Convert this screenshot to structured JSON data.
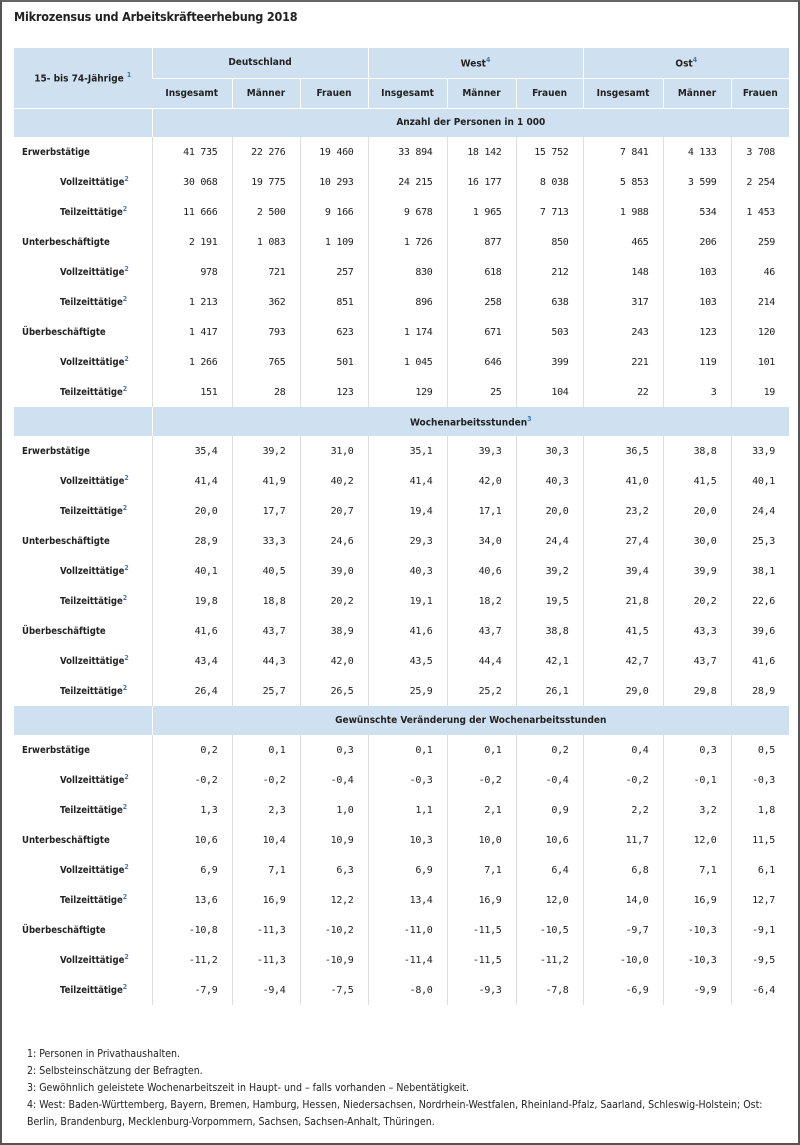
{
  "title": "Mikrozensus und Arbeitskräfteerhebung 2018",
  "header": {
    "row_label": "15- bis 74-Jährige",
    "row_label_note": "1",
    "groups": [
      {
        "label": "Deutschland",
        "note": ""
      },
      {
        "label": "West",
        "note": "4"
      },
      {
        "label": "Ost",
        "note": "4"
      }
    ],
    "columns": [
      "Insgesamt",
      "Männer",
      "Frauen",
      "Insgesamt",
      "Männer",
      "Frauen",
      "Insgesamt",
      "Männer",
      "Frauen"
    ]
  },
  "sections": [
    {
      "title": "Anzahl der Personen in 1 000",
      "note": "",
      "rows": [
        {
          "label": "Erwerbstätige",
          "sub": false,
          "note": "",
          "values": [
            "41 735",
            "22 276",
            "19 460",
            "33 894",
            "18 142",
            "15 752",
            "7 841",
            "4 133",
            "3 708"
          ]
        },
        {
          "label": "Vollzeittätige",
          "sub": true,
          "note": "2",
          "values": [
            "30 068",
            "19 775",
            "10 293",
            "24 215",
            "16 177",
            "8 038",
            "5 853",
            "3 599",
            "2 254"
          ]
        },
        {
          "label": "Teilzeittätige",
          "sub": true,
          "note": "2",
          "values": [
            "11 666",
            "2 500",
            "9 166",
            "9 678",
            "1 965",
            "7 713",
            "1 988",
            "534",
            "1 453"
          ]
        },
        {
          "label": "Unterbeschäftigte",
          "sub": false,
          "note": "",
          "values": [
            "2 191",
            "1 083",
            "1 109",
            "1 726",
            "877",
            "850",
            "465",
            "206",
            "259"
          ]
        },
        {
          "label": "Vollzeittätige",
          "sub": true,
          "note": "2",
          "values": [
            "978",
            "721",
            "257",
            "830",
            "618",
            "212",
            "148",
            "103",
            "46"
          ]
        },
        {
          "label": "Teilzeittätige",
          "sub": true,
          "note": "2",
          "values": [
            "1 213",
            "362",
            "851",
            "896",
            "258",
            "638",
            "317",
            "103",
            "214"
          ]
        },
        {
          "label": "Überbeschäftigte",
          "sub": false,
          "note": "",
          "values": [
            "1 417",
            "793",
            "623",
            "1 174",
            "671",
            "503",
            "243",
            "123",
            "120"
          ]
        },
        {
          "label": "Vollzeittätige",
          "sub": true,
          "note": "2",
          "values": [
            "1 266",
            "765",
            "501",
            "1 045",
            "646",
            "399",
            "221",
            "119",
            "101"
          ]
        },
        {
          "label": "Teilzeittätige",
          "sub": true,
          "note": "2",
          "values": [
            "151",
            "28",
            "123",
            "129",
            "25",
            "104",
            "22",
            "3",
            "19"
          ]
        }
      ]
    },
    {
      "title": "Wochenarbeitsstunden",
      "note": "3",
      "rows": [
        {
          "label": "Erwerbstätige",
          "sub": false,
          "note": "",
          "values": [
            "35,4",
            "39,2",
            "31,0",
            "35,1",
            "39,3",
            "30,3",
            "36,5",
            "38,8",
            "33,9"
          ]
        },
        {
          "label": "Vollzeittätige",
          "sub": true,
          "note": "2",
          "values": [
            "41,4",
            "41,9",
            "40,2",
            "41,4",
            "42,0",
            "40,3",
            "41,0",
            "41,5",
            "40,1"
          ]
        },
        {
          "label": "Teilzeittätige",
          "sub": true,
          "note": "2",
          "values": [
            "20,0",
            "17,7",
            "20,7",
            "19,4",
            "17,1",
            "20,0",
            "23,2",
            "20,0",
            "24,4"
          ]
        },
        {
          "label": "Unterbeschäftigte",
          "sub": false,
          "note": "",
          "values": [
            "28,9",
            "33,3",
            "24,6",
            "29,3",
            "34,0",
            "24,4",
            "27,4",
            "30,0",
            "25,3"
          ]
        },
        {
          "label": "Vollzeittätige",
          "sub": true,
          "note": "2",
          "values": [
            "40,1",
            "40,5",
            "39,0",
            "40,3",
            "40,6",
            "39,2",
            "39,4",
            "39,9",
            "38,1"
          ]
        },
        {
          "label": "Teilzeittätige",
          "sub": true,
          "note": "2",
          "values": [
            "19,8",
            "18,8",
            "20,2",
            "19,1",
            "18,2",
            "19,5",
            "21,8",
            "20,2",
            "22,6"
          ]
        },
        {
          "label": "Überbeschäftigte",
          "sub": false,
          "note": "",
          "values": [
            "41,6",
            "43,7",
            "38,9",
            "41,6",
            "43,7",
            "38,8",
            "41,5",
            "43,3",
            "39,6"
          ]
        },
        {
          "label": "Vollzeittätige",
          "sub": true,
          "note": "2",
          "values": [
            "43,4",
            "44,3",
            "42,0",
            "43,5",
            "44,4",
            "42,1",
            "42,7",
            "43,7",
            "41,6"
          ]
        },
        {
          "label": "Teilzeittätige",
          "sub": true,
          "note": "2",
          "values": [
            "26,4",
            "25,7",
            "26,5",
            "25,9",
            "25,2",
            "26,1",
            "29,0",
            "29,8",
            "28,9"
          ]
        }
      ]
    },
    {
      "title": "Gewünschte Veränderung der Wochenarbeitsstunden",
      "note": "",
      "rows": [
        {
          "label": "Erwerbstätige",
          "sub": false,
          "note": "",
          "values": [
            "0,2",
            "0,1",
            "0,3",
            "0,1",
            "0,1",
            "0,2",
            "0,4",
            "0,3",
            "0,5"
          ]
        },
        {
          "label": "Vollzeittätige",
          "sub": true,
          "note": "2",
          "values": [
            "-0,2",
            "-0,2",
            "-0,4",
            "-0,3",
            "-0,2",
            "-0,4",
            "-0,2",
            "-0,1",
            "-0,3"
          ]
        },
        {
          "label": "Teilzeittätige",
          "sub": true,
          "note": "2",
          "values": [
            "1,3",
            "2,3",
            "1,0",
            "1,1",
            "2,1",
            "0,9",
            "2,2",
            "3,2",
            "1,8"
          ]
        },
        {
          "label": "Unterbeschäftigte",
          "sub": false,
          "note": "",
          "values": [
            "10,6",
            "10,4",
            "10,9",
            "10,3",
            "10,0",
            "10,6",
            "11,7",
            "12,0",
            "11,5"
          ]
        },
        {
          "label": "Vollzeittätige",
          "sub": true,
          "note": "2",
          "values": [
            "6,9",
            "7,1",
            "6,3",
            "6,9",
            "7,1",
            "6,4",
            "6,8",
            "7,1",
            "6,1"
          ]
        },
        {
          "label": "Teilzeittätige",
          "sub": true,
          "note": "2",
          "values": [
            "13,6",
            "16,9",
            "12,2",
            "13,4",
            "16,9",
            "12,0",
            "14,0",
            "16,9",
            "12,7"
          ]
        },
        {
          "label": "Überbeschäftigte",
          "sub": false,
          "note": "",
          "values": [
            "-10,8",
            "-11,3",
            "-10,2",
            "-11,0",
            "-11,5",
            "-10,5",
            "-9,7",
            "-10,3",
            "-9,1"
          ]
        },
        {
          "label": "Vollzeittätige",
          "sub": true,
          "note": "2",
          "values": [
            "-11,2",
            "-11,3",
            "-10,9",
            "-11,4",
            "-11,5",
            "-11,2",
            "-10,0",
            "-10,3",
            "-9,5"
          ]
        },
        {
          "label": "Teilzeittätige",
          "sub": true,
          "note": "2",
          "values": [
            "-7,9",
            "-9,4",
            "-7,5",
            "-8,0",
            "-9,3",
            "-7,8",
            "-6,9",
            "-9,9",
            "-6,4"
          ]
        }
      ]
    }
  ],
  "footnotes": [
    "1: Personen in Privathaushalten.",
    "2: Selbsteinschätzung der Befragten.",
    "3: Gewöhnlich geleistete Wochenarbeitszeit in Haupt- und – falls vorhanden – Nebentätigkeit.",
    "4: West: Baden-Württemberg, Bayern, Bremen, Hamburg, Hessen, Niedersachsen, Nordrhein-Westfalen, Rheinland-Pfalz, Saarland, Schleswig-Holstein; Ost: Berlin, Brandenburg, Mecklenburg-Vorpommern, Sachsen, Sachsen-Anhalt, Thüringen."
  ],
  "colors": {
    "header_bg": "#cfe0f0",
    "link": "#3a78b5"
  }
}
